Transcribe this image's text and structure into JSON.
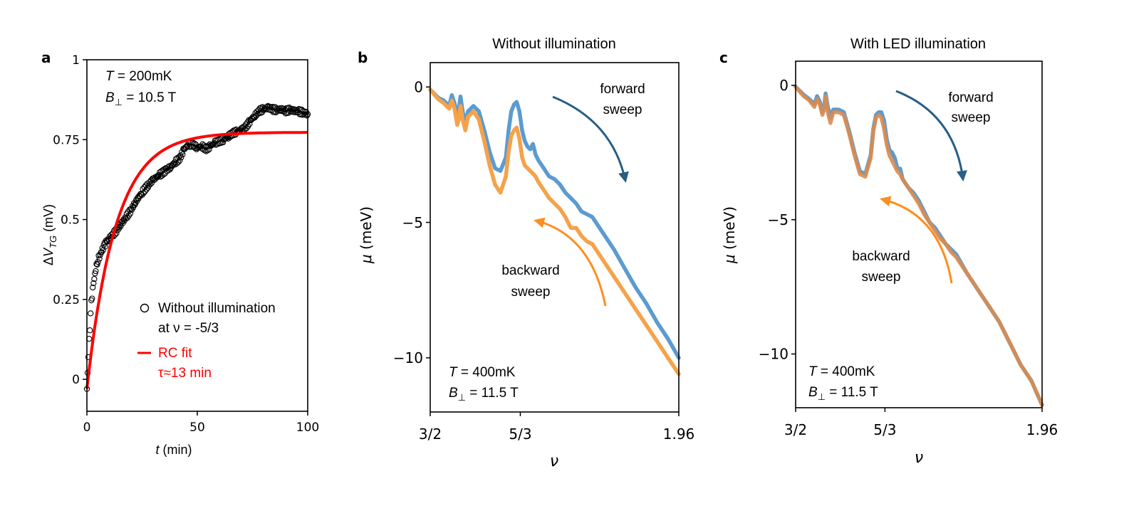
{
  "chart_data": [
    {
      "panel": "a",
      "type": "scatter",
      "title": "",
      "xlabel": {
        "italic": "t",
        "rest": " (min)"
      },
      "ylabel": {
        "prefix": "Δ",
        "italic": "V",
        "sub": "TG",
        "rest": " (mV)"
      },
      "xlim": [
        0,
        100
      ],
      "ylim": [
        -0.1,
        1.0
      ],
      "xticks": [
        0,
        50,
        100
      ],
      "xtick_labels": [
        "0",
        "50",
        "100"
      ],
      "yticks": [
        0,
        0.25,
        0.5,
        0.75,
        1.0
      ],
      "ytick_labels": [
        "0",
        "0.25",
        "0.5",
        "0.75",
        "1"
      ],
      "annotation": {
        "line1": {
          "italic": "T",
          "rest": " = 200mK"
        },
        "line2": {
          "italic": "B",
          "sub": "⊥",
          "rest": " = 10.5 T"
        }
      },
      "legend": {
        "entries": [
          {
            "label_line1": "Without illumination",
            "label_line2": "at ν = -5/3",
            "marker": "open-circle",
            "color": "#000000"
          },
          {
            "label_line1": "RC fit",
            "label_line2": "τ≈13 min",
            "marker": "line",
            "color": "#ff0000"
          }
        ]
      },
      "series": [
        {
          "name": "Without illumination at ν = -5/3",
          "style": "open-circle",
          "color": "#000000",
          "points": [
            [
              0,
              -0.03
            ],
            [
              1,
              0.12
            ],
            [
              2,
              0.24
            ],
            [
              3,
              0.3
            ],
            [
              4,
              0.345
            ],
            [
              5,
              0.375
            ],
            [
              6,
              0.39
            ],
            [
              7,
              0.405
            ],
            [
              8,
              0.42
            ],
            [
              9,
              0.43
            ],
            [
              10,
              0.44
            ],
            [
              12,
              0.455
            ],
            [
              14,
              0.47
            ],
            [
              16,
              0.49
            ],
            [
              18,
              0.51
            ],
            [
              20,
              0.53
            ],
            [
              22,
              0.555
            ],
            [
              25,
              0.585
            ],
            [
              28,
              0.61
            ],
            [
              30,
              0.625
            ],
            [
              33,
              0.64
            ],
            [
              36,
              0.655
            ],
            [
              38,
              0.665
            ],
            [
              40,
              0.68
            ],
            [
              42,
              0.69
            ],
            [
              44,
              0.72
            ],
            [
              46,
              0.735
            ],
            [
              48,
              0.735
            ],
            [
              50,
              0.725
            ],
            [
              52,
              0.73
            ],
            [
              54,
              0.72
            ],
            [
              56,
              0.73
            ],
            [
              58,
              0.74
            ],
            [
              60,
              0.745
            ],
            [
              62,
              0.75
            ],
            [
              64,
              0.76
            ],
            [
              66,
              0.77
            ],
            [
              68,
              0.775
            ],
            [
              70,
              0.78
            ],
            [
              72,
              0.79
            ],
            [
              74,
              0.81
            ],
            [
              76,
              0.825
            ],
            [
              78,
              0.84
            ],
            [
              80,
              0.845
            ],
            [
              82,
              0.85
            ],
            [
              84,
              0.845
            ],
            [
              86,
              0.843
            ],
            [
              88,
              0.845
            ],
            [
              90,
              0.84
            ],
            [
              92,
              0.843
            ],
            [
              94,
              0.84
            ],
            [
              96,
              0.838
            ],
            [
              98,
              0.835
            ],
            [
              100,
              0.83
            ]
          ]
        },
        {
          "name": "RC fit",
          "style": "line",
          "color": "#ff0000",
          "model": "A*(1-exp(-t/tau))+c",
          "params": {
            "A": 0.803,
            "tau": 13,
            "c": -0.03
          }
        }
      ]
    },
    {
      "panel": "b",
      "type": "line",
      "title": "Without illumination",
      "xlabel": "ν",
      "ylabel": {
        "italic": "μ",
        "rest": " (meV)"
      },
      "xlim": [
        1.5,
        1.96
      ],
      "ylim": [
        -12,
        0.9
      ],
      "xticks": [
        1.5,
        1.6667,
        1.96
      ],
      "xtick_labels": [
        "3/2",
        "5/3",
        "1.96"
      ],
      "yticks": [
        0,
        -5,
        -10
      ],
      "ytick_labels": [
        "0",
        "−5",
        "−10"
      ],
      "annotation": {
        "line1": {
          "italic": "T",
          "rest": " = 400mK"
        },
        "line2": {
          "italic": "B",
          "sub": "⊥",
          "rest": " = 11.5 T"
        }
      },
      "arrow_labels": {
        "forward": [
          "forward",
          "sweep"
        ],
        "backward": [
          "backward",
          "sweep"
        ]
      },
      "series": [
        {
          "name": "forward sweep",
          "color": "#5b9bd0",
          "x": [
            1.5,
            1.515,
            1.525,
            1.535,
            1.54,
            1.545,
            1.55,
            1.553,
            1.556,
            1.56,
            1.565,
            1.57,
            1.58,
            1.59,
            1.6,
            1.61,
            1.62,
            1.63,
            1.64,
            1.645,
            1.65,
            1.655,
            1.66,
            1.665,
            1.67,
            1.675,
            1.68,
            1.685,
            1.69,
            1.695,
            1.7,
            1.71,
            1.72,
            1.73,
            1.74,
            1.75,
            1.76,
            1.77,
            1.78,
            1.79,
            1.8,
            1.82,
            1.84,
            1.86,
            1.88,
            1.9,
            1.92,
            1.94,
            1.96
          ],
          "y": [
            -0.1,
            -0.4,
            -0.5,
            -0.7,
            -0.3,
            -0.6,
            -1.0,
            -0.8,
            -0.35,
            -0.9,
            -1.3,
            -0.9,
            -0.7,
            -0.9,
            -1.6,
            -2.4,
            -3.0,
            -3.1,
            -2.6,
            -1.6,
            -0.9,
            -0.65,
            -0.55,
            -0.9,
            -1.6,
            -2.0,
            -2.2,
            -2.3,
            -2.1,
            -2.5,
            -2.7,
            -3.0,
            -3.3,
            -3.4,
            -3.6,
            -3.9,
            -4.1,
            -4.3,
            -4.6,
            -4.7,
            -4.8,
            -5.4,
            -6.0,
            -6.7,
            -7.4,
            -8.0,
            -8.7,
            -9.3,
            -10.0
          ]
        },
        {
          "name": "backward sweep",
          "color": "#f5a24a",
          "x": [
            1.5,
            1.515,
            1.525,
            1.535,
            1.54,
            1.545,
            1.55,
            1.553,
            1.556,
            1.56,
            1.565,
            1.57,
            1.58,
            1.59,
            1.6,
            1.61,
            1.62,
            1.63,
            1.64,
            1.645,
            1.65,
            1.655,
            1.66,
            1.665,
            1.67,
            1.675,
            1.68,
            1.685,
            1.69,
            1.695,
            1.7,
            1.71,
            1.72,
            1.73,
            1.74,
            1.75,
            1.76,
            1.77,
            1.78,
            1.79,
            1.8,
            1.82,
            1.84,
            1.86,
            1.88,
            1.9,
            1.92,
            1.94,
            1.96
          ],
          "y": [
            -0.1,
            -0.45,
            -0.6,
            -0.8,
            -0.5,
            -0.8,
            -1.4,
            -1.2,
            -0.7,
            -1.2,
            -1.6,
            -1.1,
            -0.9,
            -1.2,
            -2.0,
            -2.9,
            -3.6,
            -3.9,
            -3.3,
            -2.4,
            -1.8,
            -1.6,
            -1.5,
            -1.9,
            -2.6,
            -2.9,
            -3.0,
            -3.1,
            -3.2,
            -3.3,
            -3.5,
            -3.8,
            -4.1,
            -4.3,
            -4.5,
            -4.8,
            -5.2,
            -5.2,
            -5.5,
            -5.7,
            -5.8,
            -6.4,
            -7.0,
            -7.6,
            -8.2,
            -8.8,
            -9.4,
            -10.0,
            -10.6
          ]
        }
      ]
    },
    {
      "panel": "c",
      "type": "line",
      "title": "With LED illumination",
      "xlabel": "ν",
      "ylabel": {
        "italic": "μ",
        "rest": " (meV)"
      },
      "xlim": [
        1.5,
        1.96
      ],
      "ylim": [
        -12,
        0.9
      ],
      "xticks": [
        1.5,
        1.6667,
        1.96
      ],
      "xtick_labels": [
        "3/2",
        "5/3",
        "1.96"
      ],
      "yticks": [
        0,
        -5,
        -10
      ],
      "ytick_labels": [
        "0",
        "−5",
        "−10"
      ],
      "annotation": {
        "line1": {
          "italic": "T",
          "rest": " = 400mK"
        },
        "line2": {
          "italic": "B",
          "sub": "⊥",
          "rest": " = 11.5 T"
        }
      },
      "arrow_labels": {
        "forward": [
          "forward",
          "sweep"
        ],
        "backward": [
          "backward",
          "sweep"
        ]
      },
      "series": [
        {
          "name": "forward sweep",
          "color": "#5b9bd0",
          "x": [
            1.5,
            1.515,
            1.525,
            1.535,
            1.54,
            1.545,
            1.55,
            1.553,
            1.556,
            1.56,
            1.565,
            1.57,
            1.58,
            1.59,
            1.6,
            1.61,
            1.62,
            1.63,
            1.64,
            1.645,
            1.65,
            1.655,
            1.66,
            1.665,
            1.67,
            1.675,
            1.68,
            1.685,
            1.69,
            1.695,
            1.7,
            1.71,
            1.72,
            1.73,
            1.74,
            1.75,
            1.76,
            1.77,
            1.78,
            1.79,
            1.8,
            1.82,
            1.84,
            1.86,
            1.88,
            1.9,
            1.92,
            1.94,
            1.96
          ],
          "y": [
            -0.05,
            -0.35,
            -0.5,
            -0.7,
            -0.4,
            -0.6,
            -1.0,
            -0.8,
            -0.3,
            -0.8,
            -1.2,
            -0.9,
            -0.9,
            -1.0,
            -1.7,
            -2.5,
            -3.2,
            -3.3,
            -2.6,
            -1.6,
            -1.1,
            -1.0,
            -1.0,
            -1.3,
            -2.0,
            -2.4,
            -2.5,
            -2.7,
            -3.1,
            -3.1,
            -3.5,
            -3.8,
            -4.0,
            -4.3,
            -4.7,
            -5.1,
            -5.3,
            -5.6,
            -5.9,
            -6.1,
            -6.3,
            -7.0,
            -7.6,
            -8.2,
            -8.8,
            -9.6,
            -10.4,
            -11.0,
            -11.9
          ]
        },
        {
          "name": "backward sweep",
          "color": "#d98c50",
          "x": [
            1.5,
            1.515,
            1.525,
            1.535,
            1.54,
            1.545,
            1.55,
            1.553,
            1.556,
            1.56,
            1.565,
            1.57,
            1.58,
            1.59,
            1.6,
            1.61,
            1.62,
            1.63,
            1.64,
            1.645,
            1.65,
            1.655,
            1.66,
            1.665,
            1.67,
            1.675,
            1.68,
            1.685,
            1.69,
            1.695,
            1.7,
            1.71,
            1.72,
            1.73,
            1.74,
            1.75,
            1.76,
            1.77,
            1.78,
            1.79,
            1.8,
            1.82,
            1.84,
            1.86,
            1.88,
            1.9,
            1.92,
            1.94,
            1.96
          ],
          "y": [
            -0.05,
            -0.4,
            -0.55,
            -0.8,
            -0.5,
            -0.7,
            -1.1,
            -0.9,
            -0.4,
            -1.0,
            -1.4,
            -1.0,
            -1.0,
            -1.1,
            -1.8,
            -2.6,
            -3.3,
            -3.4,
            -2.7,
            -1.7,
            -1.2,
            -1.1,
            -1.2,
            -1.6,
            -2.2,
            -2.6,
            -2.8,
            -3.0,
            -3.2,
            -3.3,
            -3.5,
            -3.8,
            -4.1,
            -4.4,
            -4.8,
            -5.1,
            -5.4,
            -5.7,
            -5.9,
            -6.2,
            -6.4,
            -7.0,
            -7.6,
            -8.2,
            -8.8,
            -9.6,
            -10.4,
            -11.0,
            -11.9
          ]
        }
      ]
    }
  ],
  "panel_labels": [
    "a",
    "b",
    "c"
  ],
  "colors": {
    "forward_arrow": "#275f86",
    "backward_arrow": "#ff8d1f",
    "fit_red": "#ff0000",
    "axis": "#000000"
  }
}
